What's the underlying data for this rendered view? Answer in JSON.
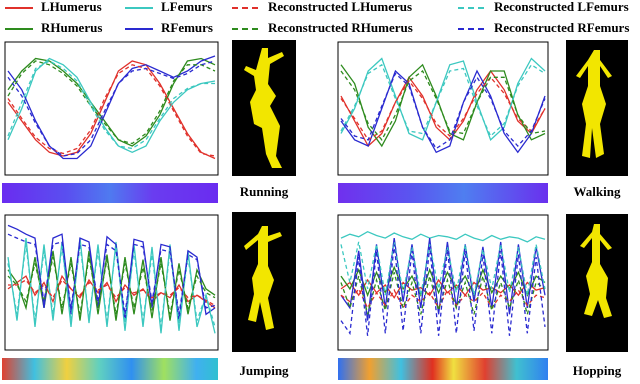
{
  "legend": [
    {
      "name": "LHumerus",
      "color": "#e0312b",
      "dashed": false
    },
    {
      "name": "RHumerus",
      "color": "#2e8b1e",
      "dashed": false
    },
    {
      "name": "LFemurs",
      "color": "#3cc8c0",
      "dashed": false
    },
    {
      "name": "RFemurs",
      "color": "#2a2ad0",
      "dashed": false
    },
    {
      "name": "Reconstructed LHumerus",
      "color": "#e0312b",
      "dashed": true
    },
    {
      "name": "Reconstructed RHumerus",
      "color": "#2e8b1e",
      "dashed": true
    },
    {
      "name": "Reconstructed LFemurs",
      "color": "#3cc8c0",
      "dashed": true
    },
    {
      "name": "Reconstructed RFemurs",
      "color": "#2a2ad0",
      "dashed": true
    }
  ],
  "chart_data": [
    {
      "type": "line",
      "label": "Running",
      "xlim": [
        0,
        15
      ],
      "ylim": [
        0,
        100
      ],
      "x": [
        0,
        1,
        2,
        3,
        4,
        5,
        6,
        7,
        8,
        9,
        10,
        11,
        12,
        13,
        14,
        15
      ],
      "series": [
        {
          "color": "#e0312b",
          "dashed": false,
          "values": [
            55,
            40,
            25,
            15,
            12,
            15,
            30,
            55,
            80,
            88,
            85,
            70,
            50,
            30,
            15,
            10
          ]
        },
        {
          "color": "#2e8b1e",
          "dashed": false,
          "values": [
            65,
            80,
            90,
            88,
            80,
            70,
            55,
            40,
            25,
            20,
            28,
            45,
            70,
            88,
            90,
            85
          ]
        },
        {
          "color": "#3cc8c0",
          "dashed": false,
          "values": [
            25,
            50,
            80,
            90,
            85,
            75,
            55,
            35,
            20,
            15,
            20,
            40,
            55,
            65,
            70,
            72
          ]
        },
        {
          "color": "#2a2ad0",
          "dashed": false,
          "values": [
            80,
            65,
            40,
            20,
            10,
            10,
            20,
            45,
            70,
            82,
            85,
            80,
            75,
            80,
            88,
            92
          ]
        },
        {
          "color": "#e0312b",
          "dashed": true,
          "values": [
            58,
            42,
            27,
            18,
            14,
            18,
            33,
            58,
            78,
            85,
            82,
            68,
            48,
            28,
            14,
            12
          ]
        },
        {
          "color": "#2e8b1e",
          "dashed": true,
          "values": [
            60,
            78,
            88,
            85,
            78,
            68,
            52,
            38,
            25,
            22,
            30,
            48,
            72,
            85,
            85,
            80
          ]
        },
        {
          "color": "#3cc8c0",
          "dashed": true,
          "values": [
            28,
            55,
            82,
            88,
            82,
            72,
            52,
            33,
            20,
            18,
            25,
            42,
            58,
            66,
            70,
            70
          ]
        },
        {
          "color": "#2a2ad0",
          "dashed": true,
          "values": [
            75,
            60,
            38,
            20,
            12,
            14,
            25,
            48,
            70,
            80,
            82,
            78,
            74,
            78,
            85,
            88
          ]
        }
      ]
    },
    {
      "type": "line",
      "label": "Walking",
      "xlim": [
        0,
        15
      ],
      "ylim": [
        0,
        100
      ],
      "x": [
        0,
        1,
        2,
        3,
        4,
        5,
        6,
        7,
        8,
        9,
        10,
        11,
        12,
        13,
        14,
        15
      ],
      "series": [
        {
          "color": "#e0312b",
          "dashed": false,
          "values": [
            60,
            40,
            20,
            30,
            55,
            75,
            60,
            35,
            25,
            40,
            65,
            80,
            65,
            40,
            30,
            50
          ]
        },
        {
          "color": "#2e8b1e",
          "dashed": false,
          "values": [
            85,
            70,
            35,
            20,
            40,
            75,
            85,
            60,
            30,
            25,
            55,
            80,
            80,
            45,
            25,
            30
          ]
        },
        {
          "color": "#3cc8c0",
          "dashed": false,
          "values": [
            30,
            50,
            80,
            90,
            60,
            30,
            25,
            55,
            85,
            88,
            55,
            25,
            35,
            70,
            90,
            80
          ]
        },
        {
          "color": "#2a2ad0",
          "dashed": false,
          "values": [
            40,
            25,
            20,
            50,
            80,
            70,
            35,
            15,
            20,
            55,
            80,
            60,
            30,
            15,
            30,
            60
          ]
        },
        {
          "color": "#e0312b",
          "dashed": true,
          "values": [
            58,
            42,
            25,
            32,
            55,
            72,
            58,
            38,
            28,
            42,
            62,
            75,
            62,
            42,
            32,
            50
          ]
        },
        {
          "color": "#2e8b1e",
          "dashed": true,
          "values": [
            80,
            65,
            38,
            25,
            45,
            72,
            80,
            58,
            32,
            30,
            55,
            75,
            75,
            45,
            30,
            32
          ]
        },
        {
          "color": "#3cc8c0",
          "dashed": true,
          "values": [
            32,
            52,
            78,
            85,
            58,
            32,
            30,
            55,
            80,
            82,
            52,
            28,
            38,
            68,
            85,
            78
          ]
        },
        {
          "color": "#2a2ad0",
          "dashed": true,
          "values": [
            42,
            28,
            25,
            52,
            78,
            68,
            35,
            18,
            25,
            55,
            75,
            58,
            32,
            20,
            32,
            58
          ]
        }
      ]
    },
    {
      "type": "line",
      "label": "Jumping",
      "xlim": [
        0,
        23
      ],
      "ylim": [
        0,
        100
      ],
      "x": [
        0,
        1,
        2,
        3,
        4,
        5,
        6,
        7,
        8,
        9,
        10,
        11,
        12,
        13,
        14,
        15,
        16,
        17,
        18,
        19,
        20,
        21,
        22,
        23
      ],
      "series": [
        {
          "color": "#e0312b",
          "dashed": false,
          "values": [
            45,
            50,
            55,
            40,
            50,
            35,
            55,
            45,
            38,
            52,
            42,
            50,
            35,
            48,
            40,
            45,
            35,
            42,
            38,
            48,
            35,
            40,
            35,
            30
          ]
        },
        {
          "color": "#2e8b1e",
          "dashed": false,
          "values": [
            60,
            50,
            30,
            70,
            30,
            75,
            25,
            70,
            20,
            75,
            25,
            72,
            20,
            70,
            25,
            68,
            22,
            70,
            20,
            65,
            25,
            60,
            45,
            40
          ]
        },
        {
          "color": "#3cc8c0",
          "dashed": false,
          "values": [
            70,
            20,
            85,
            15,
            80,
            20,
            82,
            15,
            85,
            18,
            80,
            15,
            82,
            12,
            80,
            15,
            78,
            10,
            80,
            12,
            75,
            15,
            40,
            10
          ]
        },
        {
          "color": "#2a2ad0",
          "dashed": false,
          "values": [
            95,
            92,
            88,
            85,
            30,
            85,
            88,
            25,
            85,
            82,
            30,
            86,
            80,
            20,
            84,
            82,
            30,
            80,
            78,
            20,
            75,
            70,
            25,
            30
          ]
        },
        {
          "color": "#e0312b",
          "dashed": true,
          "values": [
            48,
            48,
            52,
            42,
            48,
            38,
            52,
            45,
            40,
            50,
            44,
            48,
            38,
            46,
            42,
            44,
            38,
            42,
            40,
            46,
            38,
            40,
            36,
            32
          ]
        },
        {
          "color": "#2e8b1e",
          "dashed": true,
          "values": [
            55,
            48,
            35,
            65,
            35,
            70,
            30,
            65,
            25,
            70,
            30,
            68,
            25,
            65,
            30,
            62,
            28,
            65,
            25,
            60,
            30,
            55,
            42,
            38
          ]
        },
        {
          "color": "#3cc8c0",
          "dashed": true,
          "values": [
            65,
            25,
            80,
            20,
            75,
            25,
            78,
            20,
            80,
            22,
            75,
            20,
            78,
            18,
            75,
            20,
            72,
            15,
            75,
            18,
            70,
            20,
            40,
            15
          ]
        },
        {
          "color": "#2a2ad0",
          "dashed": true,
          "values": [
            88,
            85,
            82,
            80,
            35,
            80,
            82,
            30,
            80,
            78,
            35,
            80,
            75,
            25,
            80,
            78,
            35,
            76,
            74,
            25,
            72,
            68,
            30,
            32
          ]
        }
      ]
    },
    {
      "type": "line",
      "label": "Hopping",
      "xlim": [
        0,
        23
      ],
      "ylim": [
        0,
        100
      ],
      "x": [
        0,
        1,
        2,
        3,
        4,
        5,
        6,
        7,
        8,
        9,
        10,
        11,
        12,
        13,
        14,
        15,
        16,
        17,
        18,
        19,
        20,
        21,
        22,
        23
      ],
      "series": [
        {
          "color": "#e0312b",
          "dashed": false,
          "values": [
            45,
            50,
            40,
            52,
            42,
            48,
            38,
            50,
            44,
            46,
            40,
            52,
            42,
            48,
            40,
            50,
            44,
            46,
            42,
            48,
            40,
            50,
            44,
            46
          ]
        },
        {
          "color": "#2e8b1e",
          "dashed": false,
          "values": [
            55,
            45,
            60,
            40,
            58,
            42,
            62,
            45,
            55,
            40,
            60,
            42,
            58,
            45,
            55,
            40,
            60,
            42,
            55,
            45,
            58,
            40,
            55,
            50
          ]
        },
        {
          "color": "#3cc8c0",
          "dashed": false,
          "values": [
            85,
            88,
            86,
            90,
            87,
            85,
            89,
            86,
            84,
            88,
            85,
            87,
            86,
            84,
            88,
            85,
            83,
            87,
            84,
            86,
            85,
            82,
            86,
            84
          ]
        },
        {
          "color": "#2a2ad0",
          "dashed": false,
          "values": [
            40,
            30,
            75,
            20,
            80,
            30,
            85,
            35,
            80,
            30,
            85,
            25,
            82,
            30,
            80,
            35,
            78,
            30,
            82,
            25,
            80,
            30,
            78,
            40
          ]
        },
        {
          "color": "#e0312b",
          "dashed": true,
          "values": [
            40,
            35,
            45,
            30,
            42,
            32,
            44,
            30,
            40,
            35,
            42,
            30,
            44,
            32,
            40,
            35,
            42,
            30,
            40,
            35,
            44,
            32,
            40,
            38
          ]
        },
        {
          "color": "#2e8b1e",
          "dashed": true,
          "values": [
            50,
            30,
            55,
            25,
            52,
            28,
            58,
            30,
            50,
            25,
            55,
            28,
            52,
            30,
            50,
            25,
            55,
            28,
            50,
            30,
            52,
            25,
            50,
            45
          ]
        },
        {
          "color": "#3cc8c0",
          "dashed": true,
          "values": [
            80,
            50,
            82,
            45,
            80,
            40,
            82,
            42,
            78,
            40,
            80,
            45,
            78,
            42,
            80,
            40,
            76,
            45,
            80,
            42,
            78,
            40,
            80,
            45
          ]
        },
        {
          "color": "#2a2ad0",
          "dashed": true,
          "values": [
            20,
            10,
            70,
            8,
            75,
            10,
            80,
            12,
            75,
            10,
            78,
            8,
            76,
            10,
            75,
            12,
            72,
            10,
            75,
            8,
            72,
            10,
            70,
            15
          ]
        }
      ]
    }
  ]
}
